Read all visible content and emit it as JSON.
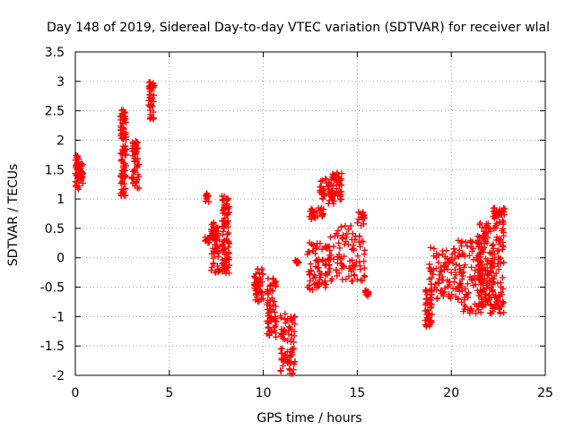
{
  "chart_data": {
    "type": "scatter",
    "title": "Day 148 of 2019, Sidereal Day-to-day VTEC variation (SDTVAR) for receiver wlal",
    "xlabel": "GPS time / hours",
    "ylabel": "SDTVAR / TECUs",
    "xlim": [
      0,
      25
    ],
    "ylim": [
      -2,
      3.5
    ],
    "xticks": [
      0,
      5,
      10,
      15,
      20,
      25
    ],
    "yticks": [
      -2,
      -1.5,
      -1,
      -0.5,
      0,
      0.5,
      1,
      1.5,
      2,
      2.5,
      3,
      3.5
    ],
    "xtick_labels": [
      "0",
      "5",
      "10",
      "15",
      "20",
      "25"
    ],
    "ytick_labels": [
      "-2",
      "-1.5",
      "-1",
      "-0.5",
      "0",
      "0.5",
      "1",
      "1.5",
      "2",
      "2.5",
      "3",
      "3.5"
    ],
    "grid": true,
    "marker": "+",
    "series": [
      {
        "name": "SDTVAR",
        "color": "#ff0000",
        "clusters": [
          {
            "x": [
              0.0,
              0.2
            ],
            "y": [
              1.15,
              1.75
            ]
          },
          {
            "x": [
              0.2,
              0.4
            ],
            "y": [
              1.25,
              1.6
            ]
          },
          {
            "x": [
              2.4,
              2.7
            ],
            "y": [
              1.05,
              1.9
            ]
          },
          {
            "x": [
              2.4,
              2.7
            ],
            "y": [
              2.0,
              2.55
            ]
          },
          {
            "x": [
              3.0,
              3.4
            ],
            "y": [
              1.15,
              2.0
            ]
          },
          {
            "x": [
              3.9,
              4.2
            ],
            "y": [
              2.35,
              3.0
            ]
          },
          {
            "x": [
              6.9,
              7.1
            ],
            "y": [
              0.95,
              1.1
            ]
          },
          {
            "x": [
              6.9,
              7.2
            ],
            "y": [
              0.25,
              0.4
            ]
          },
          {
            "x": [
              7.2,
              7.7
            ],
            "y": [
              -0.25,
              0.6
            ]
          },
          {
            "x": [
              7.8,
              8.2
            ],
            "y": [
              -0.3,
              1.05
            ]
          },
          {
            "x": [
              9.5,
              10.0
            ],
            "y": [
              -0.75,
              -0.15
            ]
          },
          {
            "x": [
              10.2,
              10.7
            ],
            "y": [
              -1.35,
              -0.35
            ]
          },
          {
            "x": [
              10.9,
              11.7
            ],
            "y": [
              -2.0,
              -0.95
            ]
          },
          {
            "x": [
              11.7,
              11.9
            ],
            "y": [
              -0.1,
              -0.02
            ]
          },
          {
            "x": [
              12.4,
              13.2
            ],
            "y": [
              0.65,
              0.85
            ]
          },
          {
            "x": [
              12.3,
              13.5
            ],
            "y": [
              -0.55,
              0.3
            ]
          },
          {
            "x": [
              13.0,
              13.8
            ],
            "y": [
              0.9,
              1.35
            ]
          },
          {
            "x": [
              13.6,
              14.2
            ],
            "y": [
              0.95,
              1.45
            ]
          },
          {
            "x": [
              13.5,
              15.4
            ],
            "y": [
              -0.4,
              0.6
            ]
          },
          {
            "x": [
              15.0,
              15.4
            ],
            "y": [
              0.65,
              0.8
            ]
          },
          {
            "x": [
              15.4,
              15.6
            ],
            "y": [
              -0.65,
              -0.55
            ]
          },
          {
            "x": [
              18.6,
              19.0
            ],
            "y": [
              -1.2,
              -0.5
            ]
          },
          {
            "x": [
              18.8,
              20.2
            ],
            "y": [
              -0.7,
              0.2
            ]
          },
          {
            "x": [
              20.2,
              21.6
            ],
            "y": [
              -0.95,
              0.3
            ]
          },
          {
            "x": [
              21.4,
              22.0
            ],
            "y": [
              -0.85,
              0.6
            ]
          },
          {
            "x": [
              22.0,
              22.8
            ],
            "y": [
              -0.95,
              0.85
            ]
          },
          {
            "x": [
              22.2,
              22.9
            ],
            "y": [
              0.7,
              0.85
            ]
          }
        ]
      }
    ]
  }
}
